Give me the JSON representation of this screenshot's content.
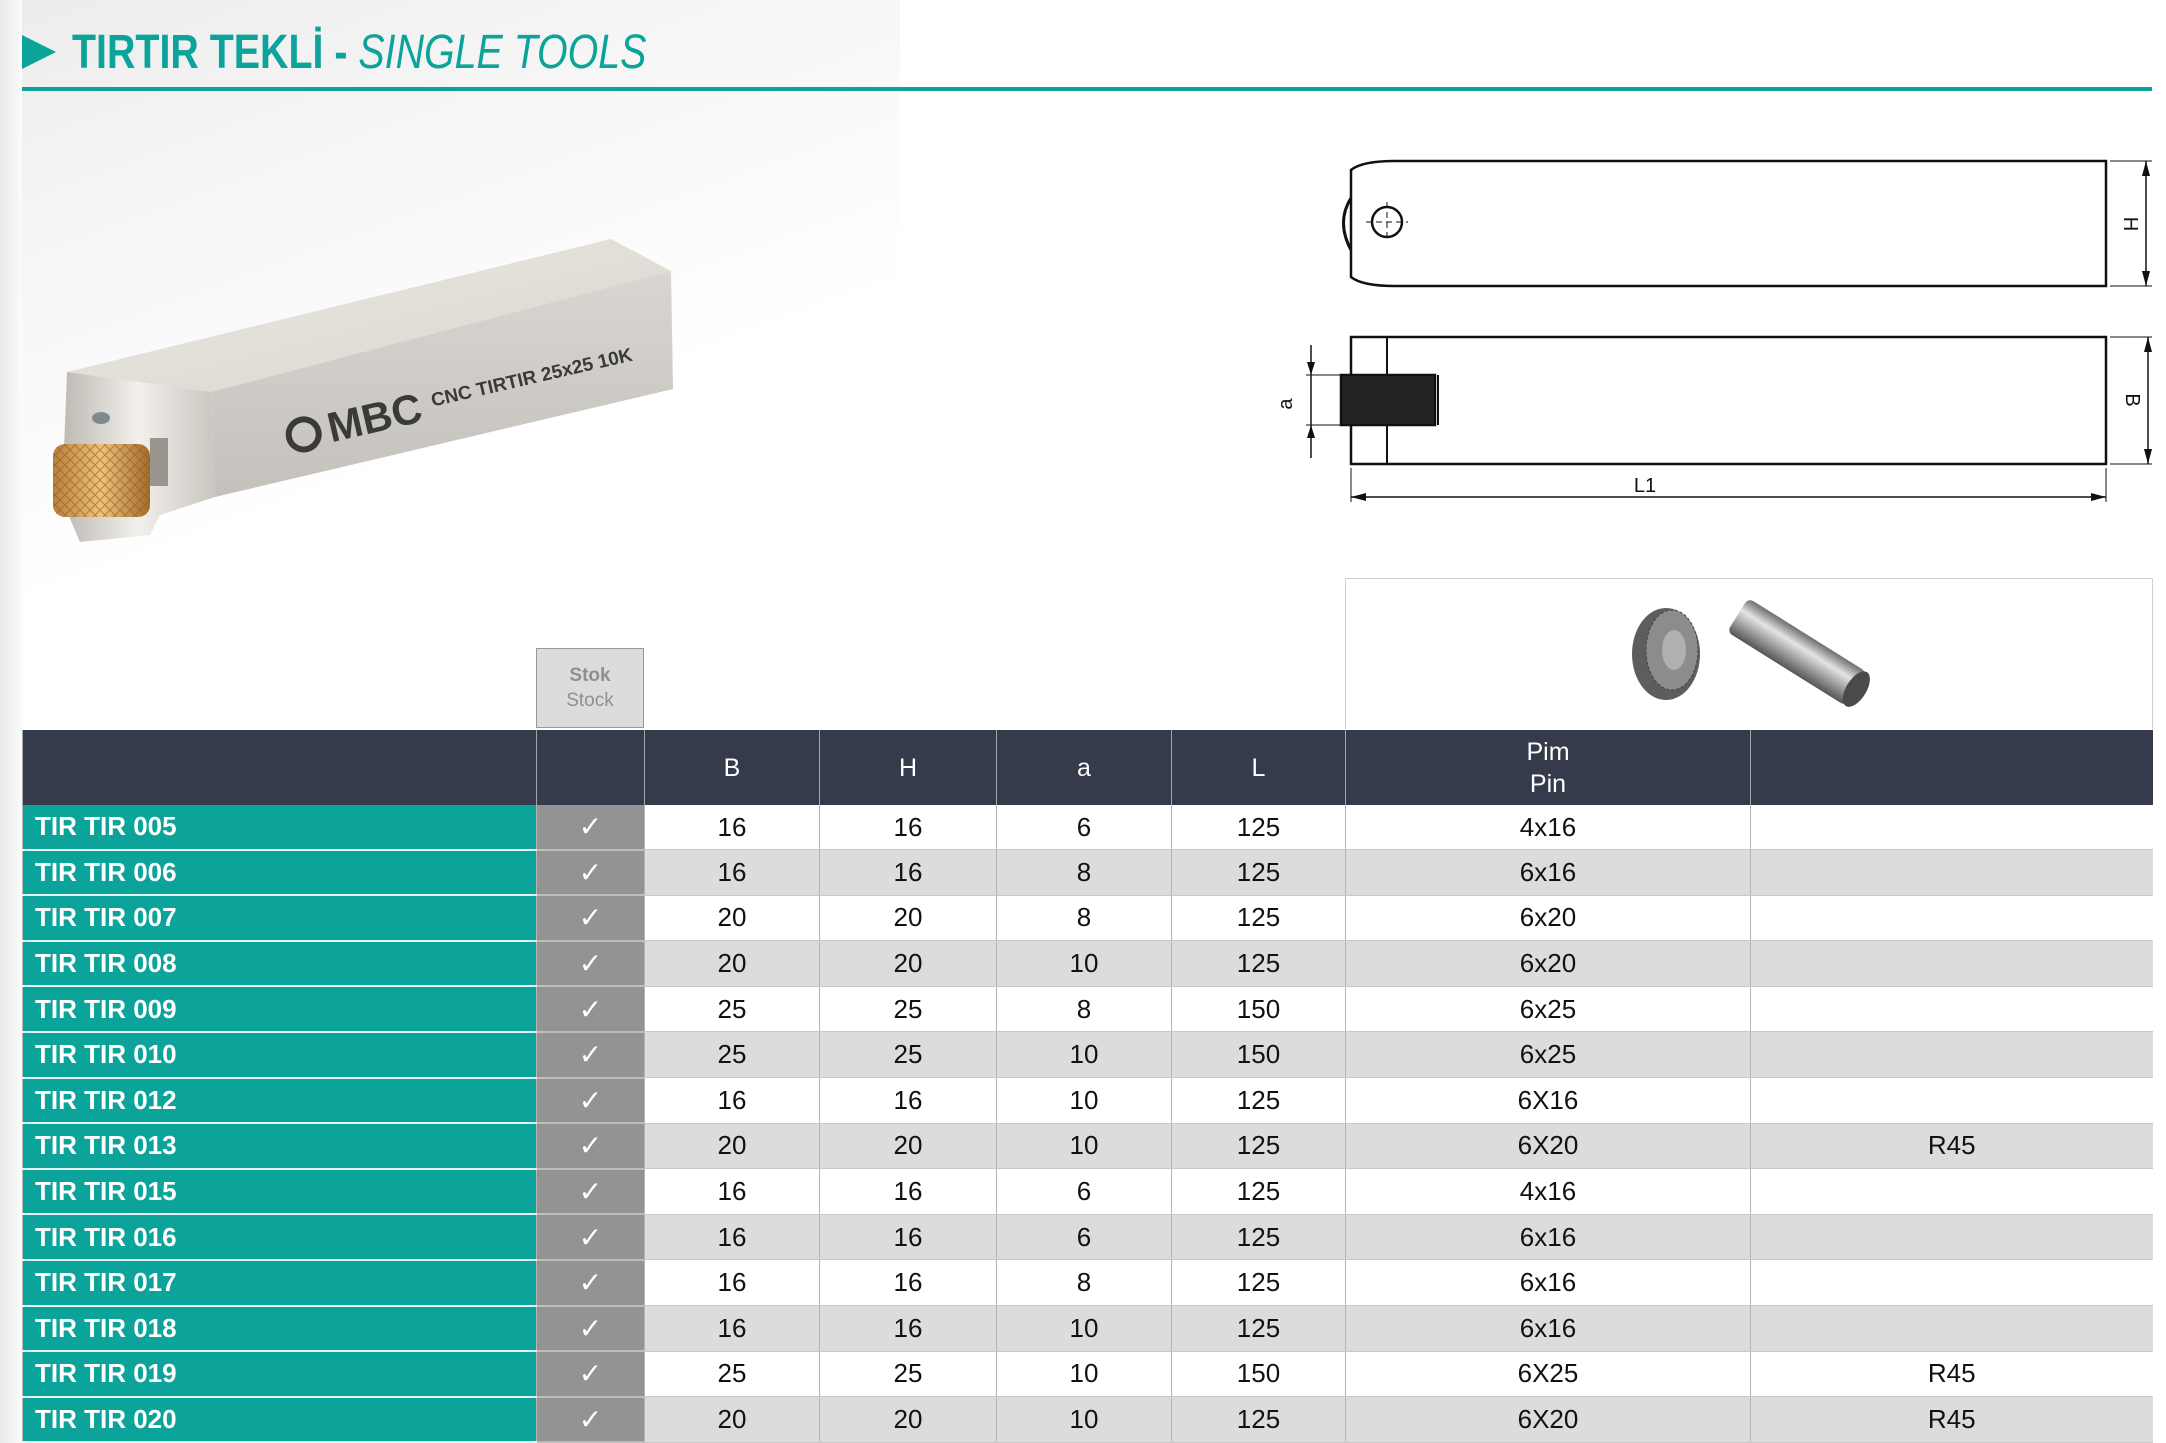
{
  "header": {
    "title_bold": "TIRTIR TEKLİ - ",
    "title_italic": "SINGLE TOOLS",
    "accent_color": "#0ba39a"
  },
  "product_image": {
    "brand": "MBC",
    "engraving": "CNC TIRTIR 25x25 10K"
  },
  "drawing": {
    "labels": {
      "H": "H",
      "B": "B",
      "a": "a",
      "L1": "L1"
    }
  },
  "stock_label": {
    "tr": "Stok",
    "en": "Stock"
  },
  "table": {
    "columns": [
      "",
      "",
      "B",
      "H",
      "a",
      "L",
      "Pim",
      "Pin",
      ""
    ],
    "rows": [
      {
        "code": "TIR TIR 005",
        "stock": "✓",
        "B": "16",
        "H": "16",
        "a": "6",
        "L": "125",
        "pin": "4x16",
        "extra": ""
      },
      {
        "code": "TIR TIR 006",
        "stock": "✓",
        "B": "16",
        "H": "16",
        "a": "8",
        "L": "125",
        "pin": "6x16",
        "extra": ""
      },
      {
        "code": "TIR TIR 007",
        "stock": "✓",
        "B": "20",
        "H": "20",
        "a": "8",
        "L": "125",
        "pin": "6x20",
        "extra": ""
      },
      {
        "code": "TIR TIR 008",
        "stock": "✓",
        "B": "20",
        "H": "20",
        "a": "10",
        "L": "125",
        "pin": "6x20",
        "extra": ""
      },
      {
        "code": "TIR TIR 009",
        "stock": "✓",
        "B": "25",
        "H": "25",
        "a": "8",
        "L": "150",
        "pin": "6x25",
        "extra": ""
      },
      {
        "code": "TIR TIR 010",
        "stock": "✓",
        "B": "25",
        "H": "25",
        "a": "10",
        "L": "150",
        "pin": "6x25",
        "extra": ""
      },
      {
        "code": "TIR TIR 012",
        "stock": "✓",
        "B": "16",
        "H": "16",
        "a": "10",
        "L": "125",
        "pin": "6X16",
        "extra": ""
      },
      {
        "code": "TIR TIR 013",
        "stock": "✓",
        "B": "20",
        "H": "20",
        "a": "10",
        "L": "125",
        "pin": "6X20",
        "extra": "R45"
      },
      {
        "code": "TIR TIR 015",
        "stock": "✓",
        "B": "16",
        "H": "16",
        "a": "6",
        "L": "125",
        "pin": "4x16",
        "extra": ""
      },
      {
        "code": "TIR TIR 016",
        "stock": "✓",
        "B": "16",
        "H": "16",
        "a": "6",
        "L": "125",
        "pin": "6x16",
        "extra": ""
      },
      {
        "code": "TIR TIR 017",
        "stock": "✓",
        "B": "16",
        "H": "16",
        "a": "8",
        "L": "125",
        "pin": "6x16",
        "extra": ""
      },
      {
        "code": "TIR TIR 018",
        "stock": "✓",
        "B": "16",
        "H": "16",
        "a": "10",
        "L": "125",
        "pin": "6x16",
        "extra": ""
      },
      {
        "code": "TIR TIR 019",
        "stock": "✓",
        "B": "25",
        "H": "25",
        "a": "10",
        "L": "150",
        "pin": "6X25",
        "extra": "R45"
      },
      {
        "code": "TIR TIR 020",
        "stock": "✓",
        "B": "20",
        "H": "20",
        "a": "10",
        "L": "125",
        "pin": "6X20",
        "extra": "R45"
      }
    ]
  }
}
